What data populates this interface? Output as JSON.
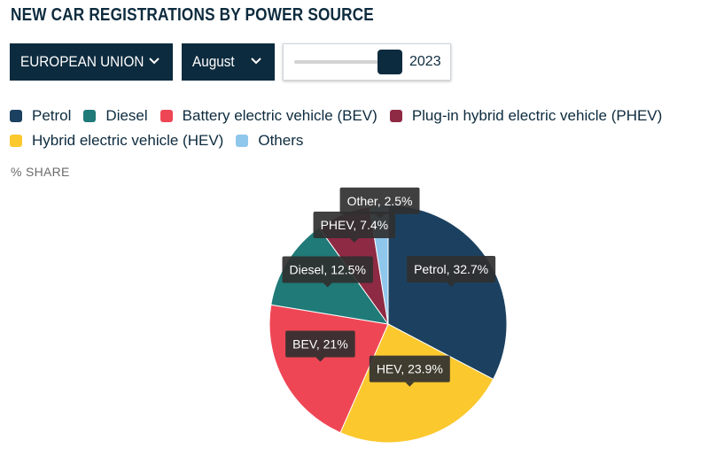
{
  "header": {
    "title": "NEW CAR REGISTRATIONS BY POWER SOURCE"
  },
  "controls": {
    "region": {
      "label": "EUROPEAN UNION",
      "icon": "chevron-down-icon"
    },
    "month": {
      "label": "August",
      "icon": "chevron-down-icon"
    },
    "year_slider": {
      "value": "2023"
    }
  },
  "legend": [
    {
      "label": "Petrol",
      "color": "#1c4160"
    },
    {
      "label": "Diesel",
      "color": "#1f7a78"
    },
    {
      "label": "Battery electric vehicle (BEV)",
      "color": "#ef4655"
    },
    {
      "label": "Plug-in hybrid electric vehicle (PHEV)",
      "color": "#8e2a44"
    },
    {
      "label": "Hybrid electric vehicle (HEV)",
      "color": "#fbc82e"
    },
    {
      "label": "Others",
      "color": "#8fc6ec"
    }
  ],
  "unit_label": "% SHARE",
  "chart_data": {
    "type": "pie",
    "unit": "% SHARE",
    "slices": [
      {
        "name": "Petrol",
        "value": 32.7,
        "label": "Petrol, 32.7%",
        "color": "#1c4160"
      },
      {
        "name": "HEV",
        "value": 23.9,
        "label": "HEV, 23.9%",
        "color": "#fbc82e"
      },
      {
        "name": "BEV",
        "value": 21,
        "label": "BEV, 21%",
        "color": "#ef4655"
      },
      {
        "name": "Diesel",
        "value": 12.5,
        "label": "Diesel, 12.5%",
        "color": "#1f7a78"
      },
      {
        "name": "PHEV",
        "value": 7.4,
        "label": "PHEV, 7.4%",
        "color": "#8e2a44"
      },
      {
        "name": "Other",
        "value": 2.5,
        "label": "Other, 2.5%",
        "color": "#8fc6ec"
      }
    ]
  }
}
